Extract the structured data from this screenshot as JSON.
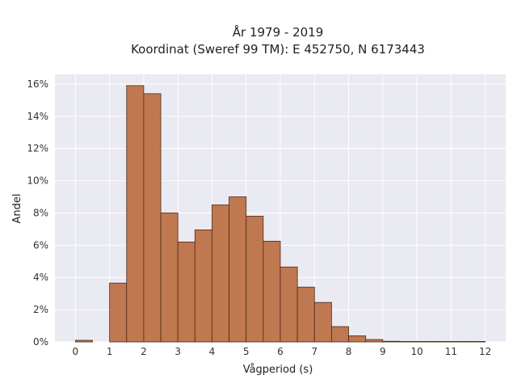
{
  "chart_data": {
    "type": "bar",
    "title": "År 1979 - 2019",
    "subtitle": "Koordinat (Sweref 99 TM): E 452750, N 6173443",
    "xlabel": "Vågperiod (s)",
    "ylabel": "Andel",
    "xlim": [
      -0.6,
      12.6
    ],
    "ylim": [
      0,
      0.166
    ],
    "x_ticks": [
      0,
      1,
      2,
      3,
      4,
      5,
      6,
      7,
      8,
      9,
      10,
      11,
      12
    ],
    "x_tick_labels": [
      "0",
      "1",
      "2",
      "3",
      "4",
      "5",
      "6",
      "7",
      "8",
      "9",
      "10",
      "11",
      "12"
    ],
    "y_ticks": [
      0,
      0.02,
      0.04,
      0.06,
      0.08,
      0.1,
      0.12,
      0.14,
      0.16
    ],
    "y_tick_labels": [
      "0%",
      "2%",
      "4%",
      "6%",
      "8%",
      "10%",
      "12%",
      "14%",
      "16%"
    ],
    "bin_width": 0.5,
    "bins_start": [
      0,
      0.5,
      1,
      1.5,
      2,
      2.5,
      3,
      3.5,
      4,
      4.5,
      5,
      5.5,
      6,
      6.5,
      7,
      7.5,
      8,
      8.5,
      9,
      9.5,
      10,
      10.5,
      11,
      11.5
    ],
    "values": [
      0.001,
      0,
      0.0365,
      0.159,
      0.154,
      0.08,
      0.062,
      0.0695,
      0.085,
      0.09,
      0.078,
      0.0625,
      0.0465,
      0.034,
      0.0245,
      0.0095,
      0.0038,
      0.0015,
      0.0004,
      0.0002,
      0.0002,
      0.0002,
      0.0001,
      0.0001
    ],
    "grid": true,
    "colors": {
      "bar_fill": "#c07850",
      "bar_edge": "#4a2a1a",
      "plot_bg": "#eaeaf2",
      "grid": "#ffffff"
    }
  }
}
